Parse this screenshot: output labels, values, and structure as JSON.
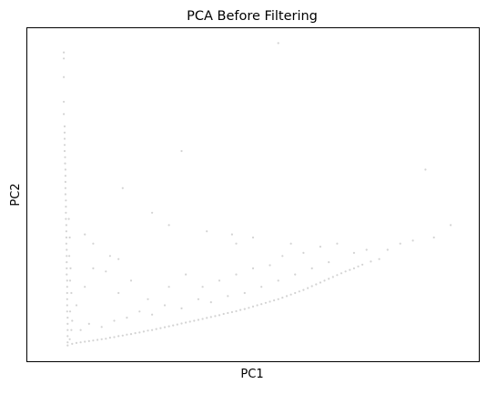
{
  "chart_data": {
    "type": "scatter",
    "title": "PCA Before Filtering",
    "xlabel": "PC1",
    "ylabel": "PC2",
    "grid": false,
    "legend": "none",
    "ticks": "none",
    "xlim": [
      0,
      100
    ],
    "ylim": [
      0,
      100
    ],
    "point_color": "#d3d3d3",
    "series": [
      {
        "points": [
          [
            5,
            96
          ],
          [
            5,
            94
          ],
          [
            5,
            88
          ],
          [
            5,
            80
          ],
          [
            5,
            76
          ],
          [
            5.2,
            72
          ],
          [
            5.2,
            70
          ],
          [
            5.2,
            68
          ],
          [
            5.2,
            66
          ],
          [
            5.2,
            64
          ],
          [
            5.3,
            62
          ],
          [
            5.3,
            60
          ],
          [
            5.4,
            58
          ],
          [
            5.4,
            56
          ],
          [
            5.4,
            54
          ],
          [
            5.4,
            52
          ],
          [
            5.4,
            50
          ],
          [
            5.5,
            48
          ],
          [
            5.5,
            46
          ],
          [
            5.5,
            44
          ],
          [
            5.5,
            42
          ],
          [
            5.6,
            40
          ],
          [
            5.6,
            38
          ],
          [
            5.6,
            36
          ],
          [
            5.6,
            34
          ],
          [
            5.7,
            32
          ],
          [
            5.7,
            30
          ],
          [
            5.7,
            28
          ],
          [
            5.7,
            26
          ],
          [
            5.7,
            24
          ],
          [
            5.8,
            22
          ],
          [
            5.8,
            20
          ],
          [
            5.8,
            18
          ],
          [
            5.8,
            16
          ],
          [
            5.8,
            14
          ],
          [
            5.8,
            12
          ],
          [
            5.9,
            10
          ],
          [
            5.9,
            8
          ],
          [
            5.9,
            6
          ],
          [
            5.9,
            4
          ],
          [
            5.9,
            2
          ],
          [
            5.9,
            1
          ],
          [
            6.2,
            42
          ],
          [
            6.4,
            36
          ],
          [
            6.3,
            30
          ],
          [
            6.6,
            26
          ],
          [
            6.5,
            22
          ],
          [
            6.8,
            18
          ],
          [
            6.5,
            12
          ],
          [
            7.0,
            9
          ],
          [
            6.8,
            6
          ],
          [
            6.4,
            3
          ],
          [
            7,
            1.5
          ],
          [
            8,
            1.8
          ],
          [
            9,
            2.0
          ],
          [
            10,
            2.2
          ],
          [
            11,
            2.4
          ],
          [
            12,
            2.6
          ],
          [
            13,
            2.8
          ],
          [
            14,
            3.0
          ],
          [
            15,
            3.2
          ],
          [
            16,
            3.5
          ],
          [
            17,
            3.7
          ],
          [
            18,
            4.0
          ],
          [
            19,
            4.2
          ],
          [
            20,
            4.5
          ],
          [
            21,
            4.7
          ],
          [
            22,
            5.0
          ],
          [
            23,
            5.2
          ],
          [
            24,
            5.5
          ],
          [
            25,
            5.8
          ],
          [
            26,
            6.0
          ],
          [
            27,
            6.3
          ],
          [
            28,
            6.6
          ],
          [
            29,
            6.9
          ],
          [
            30,
            7.2
          ],
          [
            31,
            7.5
          ],
          [
            32,
            7.8
          ],
          [
            33,
            8.1
          ],
          [
            34,
            8.4
          ],
          [
            35,
            8.7
          ],
          [
            36,
            9.0
          ],
          [
            37,
            9.3
          ],
          [
            38,
            9.6
          ],
          [
            39,
            9.9
          ],
          [
            40,
            10.2
          ],
          [
            41,
            10.5
          ],
          [
            42,
            10.8
          ],
          [
            43,
            11.2
          ],
          [
            44,
            11.5
          ],
          [
            45,
            11.8
          ],
          [
            46,
            12.1
          ],
          [
            47,
            12.5
          ],
          [
            48,
            12.8
          ],
          [
            49,
            13.2
          ],
          [
            50,
            13.6
          ],
          [
            51,
            14.0
          ],
          [
            52,
            14.4
          ],
          [
            53,
            14.8
          ],
          [
            54,
            15.2
          ],
          [
            55,
            15.6
          ],
          [
            56,
            16.0
          ],
          [
            57,
            16.5
          ],
          [
            58,
            17.0
          ],
          [
            59,
            17.5
          ],
          [
            60,
            18.0
          ],
          [
            61,
            18.5
          ],
          [
            62,
            19.0
          ],
          [
            63,
            19.6
          ],
          [
            64,
            20.2
          ],
          [
            65,
            20.8
          ],
          [
            66,
            21.4
          ],
          [
            67,
            22.0
          ],
          [
            68,
            22.6
          ],
          [
            69,
            23.2
          ],
          [
            70,
            23.8
          ],
          [
            71,
            24.4
          ],
          [
            72,
            25.0
          ],
          [
            73,
            25.5
          ],
          [
            74,
            26.0
          ],
          [
            75,
            26.6
          ],
          [
            76,
            27.2
          ],
          [
            78,
            28.2
          ],
          [
            80,
            29.0
          ],
          [
            9,
            6
          ],
          [
            11,
            8
          ],
          [
            14,
            7
          ],
          [
            17,
            9
          ],
          [
            20,
            10
          ],
          [
            23,
            12
          ],
          [
            26,
            11
          ],
          [
            29,
            14
          ],
          [
            33,
            13
          ],
          [
            37,
            16
          ],
          [
            40,
            15
          ],
          [
            44,
            17
          ],
          [
            48,
            18
          ],
          [
            52,
            20
          ],
          [
            56,
            22
          ],
          [
            60,
            24
          ],
          [
            64,
            26
          ],
          [
            68,
            28
          ],
          [
            8,
            14
          ],
          [
            10,
            20
          ],
          [
            12,
            26
          ],
          [
            16,
            30
          ],
          [
            18,
            18
          ],
          [
            21,
            22
          ],
          [
            25,
            16
          ],
          [
            30,
            20
          ],
          [
            34,
            24
          ],
          [
            38,
            20
          ],
          [
            42,
            22
          ],
          [
            46,
            24
          ],
          [
            50,
            26
          ],
          [
            54,
            27
          ],
          [
            57,
            30
          ],
          [
            62,
            31
          ],
          [
            66,
            33
          ],
          [
            70,
            34
          ],
          [
            74,
            31
          ],
          [
            77,
            32
          ],
          [
            82,
            32
          ],
          [
            85,
            34
          ],
          [
            88,
            35
          ],
          [
            10,
            37
          ],
          [
            12,
            34
          ],
          [
            15,
            25
          ],
          [
            18,
            29
          ],
          [
            56,
            99
          ],
          [
            33,
            64
          ],
          [
            19,
            52
          ],
          [
            26,
            44
          ],
          [
            30,
            40
          ],
          [
            39,
            38
          ],
          [
            45,
            37
          ],
          [
            46,
            34
          ],
          [
            50,
            36
          ],
          [
            59,
            34
          ],
          [
            91,
            58
          ],
          [
            93,
            36
          ],
          [
            97,
            40
          ]
        ]
      }
    ]
  }
}
